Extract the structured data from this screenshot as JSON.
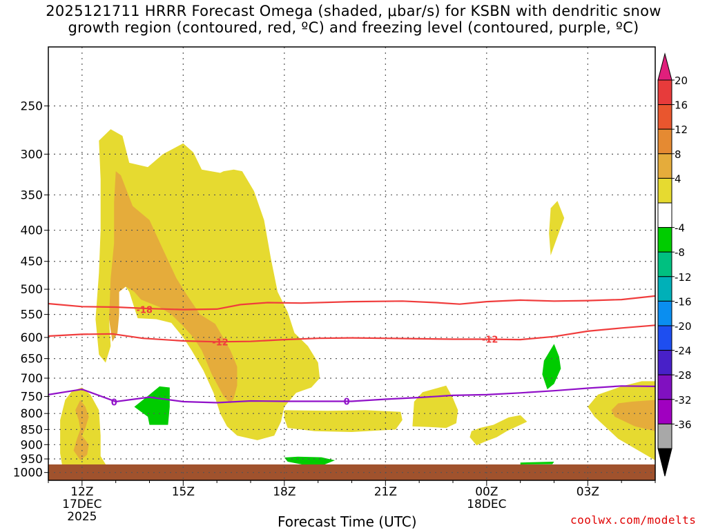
{
  "title": {
    "line1": "2025121711 HRRR Forecast Omega (shaded, μbar/s) for KSBN with dendritic snow",
    "line2": "growth region (contoured, red, ºC) and freezing level (contoured, purple, ºC)"
  },
  "credit": "coolwx.com/modelts",
  "colors": {
    "c4": "#e6da30",
    "c8": "#e5ac3b",
    "c12": "#e58a32",
    "c16": "#e9562e",
    "c20": "#e73b3b",
    "cTop": "#e01f7c",
    "n4": "#00cc00",
    "n8": "#00c080",
    "n12": "#00b0b8",
    "n16": "#0a8ef0",
    "n20": "#1e4ef0",
    "n24": "#4820c8",
    "n28": "#8010c0",
    "n32": "#a000c0",
    "n36": "#a8a8a8",
    "nBottom": "#000000",
    "ground": "#a0522d",
    "red_contour": "#f03c3c",
    "purple_contour": "#9010c8"
  },
  "chart_data": {
    "type": "heatmap",
    "xlabel": "Forecast Time (UTC)",
    "ylabel": "",
    "x_unit": "hours from 2025-12-17 11Z",
    "xlim": [
      0,
      18
    ],
    "x_ticks": [
      {
        "x": 1,
        "label": "12Z",
        "sub1": "17DEC",
        "sub2": "2025"
      },
      {
        "x": 4,
        "label": "15Z",
        "sub1": "",
        "sub2": ""
      },
      {
        "x": 7,
        "label": "18Z",
        "sub1": "",
        "sub2": ""
      },
      {
        "x": 10,
        "label": "21Z",
        "sub1": "",
        "sub2": ""
      },
      {
        "x": 13,
        "label": "00Z",
        "sub1": "18DEC",
        "sub2": ""
      },
      {
        "x": 16,
        "label": "03Z",
        "sub1": "",
        "sub2": ""
      }
    ],
    "y_axis": "pressure (mb), log scale",
    "ylim": [
      1030,
      200
    ],
    "y_ticks": [
      250,
      300,
      350,
      400,
      450,
      500,
      550,
      600,
      650,
      700,
      750,
      800,
      850,
      900,
      950,
      1000
    ],
    "grid": true,
    "colorbar": {
      "labels": [
        "20",
        "16",
        "12",
        "8",
        "4",
        "-4",
        "-8",
        "-12",
        "-16",
        "-20",
        "-24",
        "-28",
        "-32",
        "-36"
      ],
      "bins": [
        {
          "from": 16,
          "to": 20,
          "color_key": "c20"
        },
        {
          "from": 12,
          "to": 16,
          "color_key": "c16"
        },
        {
          "from": 8,
          "to": 12,
          "color_key": "c12"
        },
        {
          "from": 4,
          "to": 8,
          "color_key": "c8"
        },
        {
          "from": -4,
          "to": 4,
          "color_key": "c4"
        },
        {
          "from": -4,
          "to": 4,
          "color_key": "white"
        },
        {
          "from": -8,
          "to": -4,
          "color_key": "n4"
        },
        {
          "from": -12,
          "to": -8,
          "color_key": "n8"
        },
        {
          "from": -16,
          "to": -12,
          "color_key": "n12"
        },
        {
          "from": -20,
          "to": -16,
          "color_key": "n16"
        },
        {
          "from": -24,
          "to": -20,
          "color_key": "n20"
        },
        {
          "from": -28,
          "to": -24,
          "color_key": "n24"
        },
        {
          "from": -32,
          "to": -28,
          "color_key": "n28"
        },
        {
          "from": -36,
          "to": -32,
          "color_key": "n32"
        },
        {
          "from": -40,
          "to": -36,
          "color_key": "n36"
        }
      ]
    },
    "shaded_regions": [
      {
        "value_band": "4-8",
        "color_key": "c4",
        "points": [
          [
            0.45,
            1005
          ],
          [
            0.35,
            930
          ],
          [
            0.35,
            820
          ],
          [
            0.5,
            760
          ],
          [
            0.7,
            735
          ],
          [
            1.0,
            725
          ],
          [
            1.25,
            745
          ],
          [
            1.5,
            790
          ],
          [
            1.55,
            870
          ],
          [
            1.55,
            940
          ],
          [
            1.75,
            980
          ],
          [
            1.2,
            990
          ],
          [
            0.7,
            990
          ]
        ]
      },
      {
        "value_band": "8-12",
        "color_key": "c8",
        "points": [
          [
            0.9,
            820
          ],
          [
            0.8,
            790
          ],
          [
            0.95,
            760
          ],
          [
            1.1,
            780
          ],
          [
            1.2,
            810
          ],
          [
            1.1,
            845
          ],
          [
            1.0,
            870
          ],
          [
            1.2,
            900
          ],
          [
            1.15,
            935
          ],
          [
            0.95,
            955
          ],
          [
            0.75,
            920
          ],
          [
            0.85,
            880
          ],
          [
            0.95,
            850
          ]
        ]
      },
      {
        "value_band": "4-8",
        "color_key": "c4",
        "points": [
          [
            1.5,
            640
          ],
          [
            1.4,
            560
          ],
          [
            1.5,
            470
          ],
          [
            1.55,
            400
          ],
          [
            1.55,
            330
          ],
          [
            1.5,
            285
          ],
          [
            1.85,
            273
          ],
          [
            2.2,
            280
          ],
          [
            2.4,
            310
          ],
          [
            2.95,
            315
          ],
          [
            3.4,
            300
          ],
          [
            4.0,
            288
          ],
          [
            4.3,
            298
          ],
          [
            4.55,
            318
          ],
          [
            5.1,
            322
          ],
          [
            5.2,
            320
          ],
          [
            5.5,
            318
          ],
          [
            5.75,
            320
          ],
          [
            6.1,
            345
          ],
          [
            6.4,
            385
          ],
          [
            6.6,
            445
          ],
          [
            6.8,
            505
          ],
          [
            7.1,
            545
          ],
          [
            7.3,
            590
          ],
          [
            7.7,
            620
          ],
          [
            8.0,
            660
          ],
          [
            8.05,
            700
          ],
          [
            7.8,
            725
          ],
          [
            7.35,
            740
          ],
          [
            7.0,
            780
          ],
          [
            6.9,
            825
          ],
          [
            6.7,
            870
          ],
          [
            6.2,
            885
          ],
          [
            5.6,
            870
          ],
          [
            5.3,
            840
          ],
          [
            5.1,
            800
          ],
          [
            4.9,
            740
          ],
          [
            4.6,
            680
          ],
          [
            4.25,
            630
          ],
          [
            4.0,
            600
          ],
          [
            3.65,
            568
          ],
          [
            3.2,
            560
          ],
          [
            2.65,
            558
          ],
          [
            2.4,
            505
          ],
          [
            2.2,
            487
          ],
          [
            1.95,
            500
          ],
          [
            1.8,
            560
          ],
          [
            1.85,
            620
          ],
          [
            1.7,
            660
          ]
        ]
      },
      {
        "value_band": "8-12",
        "color_key": "c8",
        "points": [
          [
            1.9,
            610
          ],
          [
            1.8,
            560
          ],
          [
            1.85,
            480
          ],
          [
            1.95,
            420
          ],
          [
            1.95,
            360
          ],
          [
            2.0,
            320
          ],
          [
            2.15,
            325
          ],
          [
            2.5,
            365
          ],
          [
            3.0,
            385
          ],
          [
            3.4,
            430
          ],
          [
            3.8,
            480
          ],
          [
            4.1,
            510
          ],
          [
            4.5,
            550
          ],
          [
            4.95,
            570
          ],
          [
            5.4,
            630
          ],
          [
            5.6,
            670
          ],
          [
            5.6,
            720
          ],
          [
            5.5,
            755
          ],
          [
            5.4,
            770
          ],
          [
            5.2,
            750
          ],
          [
            4.85,
            690
          ],
          [
            4.55,
            630
          ],
          [
            4.3,
            600
          ],
          [
            4.0,
            575
          ],
          [
            3.65,
            550
          ],
          [
            3.3,
            535
          ],
          [
            2.75,
            520
          ],
          [
            2.55,
            505
          ],
          [
            2.3,
            495
          ],
          [
            2.1,
            505
          ],
          [
            2.1,
            550
          ],
          [
            2.05,
            590
          ]
        ]
      },
      {
        "value_band": "4-8",
        "color_key": "c4",
        "points": [
          [
            7.0,
            815
          ],
          [
            7.0,
            790
          ],
          [
            8.3,
            792
          ],
          [
            9.4,
            790
          ],
          [
            10.45,
            795
          ],
          [
            10.5,
            820
          ],
          [
            10.3,
            850
          ],
          [
            9.0,
            858
          ],
          [
            7.9,
            855
          ],
          [
            7.1,
            845
          ]
        ]
      },
      {
        "value_band": "4-8",
        "color_key": "c4",
        "points": [
          [
            10.8,
            840
          ],
          [
            10.85,
            765
          ],
          [
            11.1,
            738
          ],
          [
            11.8,
            720
          ],
          [
            12.0,
            755
          ],
          [
            12.15,
            790
          ],
          [
            12.1,
            830
          ],
          [
            11.8,
            845
          ],
          [
            11.3,
            842
          ]
        ]
      },
      {
        "value_band": "4-8",
        "color_key": "c4",
        "points": [
          [
            12.55,
            855
          ],
          [
            12.5,
            875
          ],
          [
            12.7,
            902
          ],
          [
            12.95,
            890
          ],
          [
            13.3,
            875
          ],
          [
            13.6,
            855
          ],
          [
            13.9,
            840
          ],
          [
            14.2,
            825
          ],
          [
            14.0,
            805
          ],
          [
            13.65,
            812
          ],
          [
            13.2,
            835
          ],
          [
            12.8,
            845
          ]
        ]
      },
      {
        "value_band": "4-8",
        "color_key": "c4",
        "points": [
          [
            14.9,
            440
          ],
          [
            14.85,
            405
          ],
          [
            14.9,
            368
          ],
          [
            15.1,
            358
          ],
          [
            15.3,
            382
          ],
          [
            15.1,
            410
          ]
        ]
      },
      {
        "value_band": "4-8",
        "color_key": "c4",
        "points": [
          [
            18.0,
            955
          ],
          [
            16.9,
            880
          ],
          [
            16.2,
            810
          ],
          [
            16.0,
            780
          ],
          [
            16.3,
            745
          ],
          [
            17.0,
            722
          ],
          [
            17.6,
            708
          ],
          [
            18.0,
            708
          ]
        ]
      },
      {
        "value_band": "8-12",
        "color_key": "c8",
        "points": [
          [
            18.0,
            855
          ],
          [
            17.4,
            840
          ],
          [
            16.8,
            810
          ],
          [
            16.7,
            790
          ],
          [
            16.9,
            770
          ],
          [
            17.3,
            765
          ],
          [
            18.0,
            760
          ]
        ]
      },
      {
        "value_band": "-4--8",
        "color_key": "n4",
        "points": [
          [
            2.55,
            780
          ],
          [
            3.0,
            745
          ],
          [
            3.3,
            722
          ],
          [
            3.6,
            725
          ],
          [
            3.6,
            780
          ],
          [
            3.55,
            835
          ],
          [
            3.0,
            835
          ],
          [
            2.95,
            810
          ]
        ]
      },
      {
        "value_band": "-4--8",
        "color_key": "n4",
        "points": [
          [
            14.7,
            655
          ],
          [
            15.0,
            615
          ],
          [
            15.15,
            645
          ],
          [
            15.2,
            675
          ],
          [
            15.0,
            715
          ],
          [
            14.8,
            730
          ],
          [
            14.65,
            690
          ]
        ]
      },
      {
        "value_band": "-4--8",
        "color_key": "n4",
        "points": [
          [
            7.0,
            945
          ],
          [
            7.4,
            942
          ],
          [
            8.1,
            944
          ],
          [
            8.5,
            955
          ],
          [
            8.2,
            970
          ],
          [
            7.6,
            972
          ],
          [
            7.1,
            960
          ]
        ]
      },
      {
        "value_band": "-4--8",
        "color_key": "n4",
        "points": [
          [
            14.0,
            963
          ],
          [
            15.0,
            960
          ],
          [
            14.95,
            969
          ],
          [
            14.0,
            970
          ]
        ]
      }
    ],
    "ground_level_mb": 970,
    "contours": [
      {
        "label": "-18",
        "color_key": "red_contour",
        "label_at": [
          2.85,
          540
        ],
        "points": [
          [
            0,
            528
          ],
          [
            1.0,
            534
          ],
          [
            2.0,
            535
          ],
          [
            3.0,
            538
          ],
          [
            4.0,
            540
          ],
          [
            5.0,
            539
          ],
          [
            5.7,
            530
          ],
          [
            6.5,
            526
          ],
          [
            7.5,
            527
          ],
          [
            9.0,
            524
          ],
          [
            10.5,
            523
          ],
          [
            11.5,
            526
          ],
          [
            12.2,
            529
          ],
          [
            13.0,
            524
          ],
          [
            14.0,
            521
          ],
          [
            15.0,
            523
          ],
          [
            16.0,
            522
          ],
          [
            17.0,
            520
          ],
          [
            18.0,
            513
          ]
        ]
      },
      {
        "label": "-12",
        "color_key": "red_contour",
        "label_at": [
          5.1,
          610
        ],
        "label2_at": [
          13.1,
          604
        ],
        "points": [
          [
            0,
            597
          ],
          [
            1.0,
            593
          ],
          [
            1.9,
            592
          ],
          [
            2.8,
            602
          ],
          [
            4.0,
            608
          ],
          [
            5.0,
            610
          ],
          [
            6.0,
            609
          ],
          [
            7.0,
            605
          ],
          [
            8.0,
            602
          ],
          [
            9.0,
            601
          ],
          [
            10.0,
            602
          ],
          [
            11.0,
            603
          ],
          [
            12.0,
            604
          ],
          [
            13.0,
            604
          ],
          [
            14.0,
            605
          ],
          [
            15.0,
            598
          ],
          [
            16.0,
            586
          ],
          [
            17.0,
            579
          ],
          [
            18.0,
            573
          ]
        ]
      },
      {
        "label": "0",
        "color_key": "purple_contour",
        "label_at": [
          1.95,
          766
        ],
        "label2_at": [
          8.85,
          764
        ],
        "points": [
          [
            0,
            745
          ],
          [
            1.0,
            730
          ],
          [
            2.0,
            765
          ],
          [
            3.0,
            752
          ],
          [
            4.0,
            765
          ],
          [
            5.0,
            768
          ],
          [
            6.0,
            763
          ],
          [
            7.0,
            764
          ],
          [
            8.0,
            764
          ],
          [
            9.0,
            764
          ],
          [
            10.0,
            758
          ],
          [
            11.0,
            753
          ],
          [
            12.0,
            747
          ],
          [
            13.0,
            745
          ],
          [
            14.0,
            740
          ],
          [
            15.0,
            734
          ],
          [
            16.0,
            727
          ],
          [
            17.0,
            721
          ],
          [
            18.0,
            722
          ]
        ]
      }
    ]
  }
}
